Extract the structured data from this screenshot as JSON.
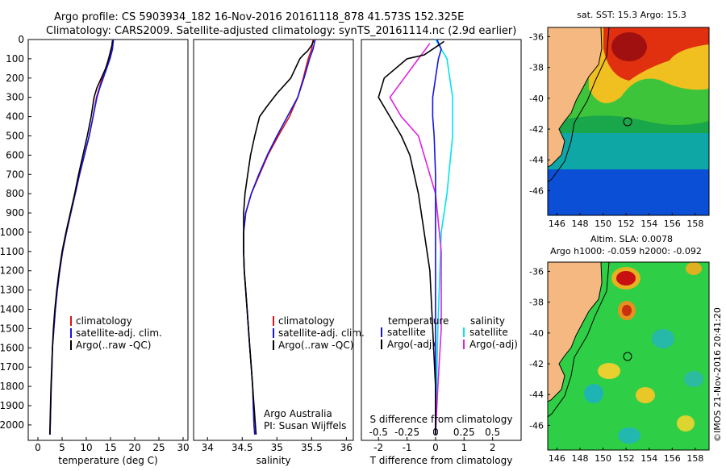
{
  "header": {
    "line1": "Argo profile: CS 5903934_182 16-Nov-2016 20161118_878 41.573S 152.325E",
    "line2": "Climatology: CARS2009. Satellite-adjusted climatology: synTS_20161114.nc (2.9d earlier)"
  },
  "depth_ticks": [
    "0",
    "100",
    "200",
    "300",
    "400",
    "500",
    "600",
    "700",
    "800",
    "900",
    "1000",
    "1100",
    "1200",
    "1300",
    "1400",
    "1500",
    "1600",
    "1700",
    "1800",
    "1900",
    "2000"
  ],
  "colors": {
    "climatology": "#e01010",
    "satellite": "#1515e0",
    "argo": "#000000",
    "sal_sat": "#00e5ee",
    "sal_argo": "#e020e0"
  },
  "chart_data": [
    {
      "type": "line",
      "name": "temperature",
      "xlabel": "temperature (deg C)",
      "ylabel": "",
      "xlim": [
        -2,
        31
      ],
      "ylim": [
        2080,
        0
      ],
      "xticks": [
        "0",
        "5",
        "10",
        "15",
        "20",
        "25",
        "30"
      ],
      "legend": [
        "climatology",
        "satellite-adj. clim.",
        "Argo(..raw -QC)"
      ],
      "legend_placement": "lower-middle",
      "series": [
        {
          "name": "climatology",
          "color_key": "climatology",
          "points": [
            [
              15.5,
              0
            ],
            [
              15.3,
              50
            ],
            [
              14.7,
              100
            ],
            [
              14.0,
              150
            ],
            [
              13.3,
              200
            ],
            [
              12.7,
              250
            ],
            [
              12.1,
              300
            ],
            [
              11.4,
              400
            ],
            [
              10.6,
              500
            ],
            [
              9.6,
              600
            ],
            [
              8.6,
              700
            ],
            [
              7.7,
              800
            ],
            [
              6.8,
              900
            ],
            [
              5.9,
              1000
            ],
            [
              5.1,
              1100
            ],
            [
              4.5,
              1200
            ],
            [
              4.0,
              1300
            ],
            [
              3.6,
              1400
            ],
            [
              3.3,
              1500
            ],
            [
              3.0,
              1600
            ],
            [
              2.9,
              1700
            ],
            [
              2.75,
              1800
            ],
            [
              2.65,
              1900
            ],
            [
              2.55,
              2000
            ],
            [
              2.5,
              2050
            ]
          ]
        },
        {
          "name": "satellite-adj. clim.",
          "color_key": "satellite",
          "points": [
            [
              15.6,
              0
            ],
            [
              15.4,
              50
            ],
            [
              14.9,
              100
            ],
            [
              14.2,
              150
            ],
            [
              13.5,
              200
            ],
            [
              12.8,
              250
            ],
            [
              12.2,
              300
            ],
            [
              11.4,
              400
            ],
            [
              10.6,
              500
            ],
            [
              9.6,
              600
            ],
            [
              8.6,
              700
            ],
            [
              7.7,
              800
            ],
            [
              6.8,
              900
            ],
            [
              5.9,
              1000
            ],
            [
              5.1,
              1100
            ],
            [
              4.5,
              1200
            ],
            [
              4.0,
              1300
            ],
            [
              3.6,
              1400
            ],
            [
              3.3,
              1500
            ],
            [
              3.0,
              1600
            ],
            [
              2.9,
              1700
            ],
            [
              2.75,
              1800
            ],
            [
              2.65,
              1900
            ],
            [
              2.55,
              2000
            ],
            [
              2.5,
              2050
            ]
          ]
        },
        {
          "name": "Argo(..raw -QC)",
          "color_key": "argo",
          "points": [
            [
              15.4,
              5
            ],
            [
              15.3,
              30
            ],
            [
              15.0,
              60
            ],
            [
              14.6,
              100
            ],
            [
              14.0,
              150
            ],
            [
              13.1,
              200
            ],
            [
              12.2,
              250
            ],
            [
              11.6,
              300
            ],
            [
              11.0,
              400
            ],
            [
              10.2,
              500
            ],
            [
              9.3,
              600
            ],
            [
              8.4,
              700
            ],
            [
              7.6,
              800
            ],
            [
              6.7,
              900
            ],
            [
              5.8,
              1000
            ],
            [
              5.0,
              1100
            ],
            [
              4.4,
              1200
            ],
            [
              3.9,
              1300
            ],
            [
              3.5,
              1400
            ],
            [
              3.2,
              1500
            ],
            [
              3.0,
              1600
            ],
            [
              2.85,
              1700
            ],
            [
              2.7,
              1800
            ],
            [
              2.6,
              1900
            ],
            [
              2.5,
              2000
            ],
            [
              2.45,
              2050
            ]
          ]
        }
      ]
    },
    {
      "type": "line",
      "name": "salinity",
      "xlabel": "salinity",
      "ylabel": "",
      "xlim": [
        33.8,
        36.1
      ],
      "ylim": [
        2080,
        0
      ],
      "xticks": [
        "34",
        "34.5",
        "35",
        "35.5",
        "36"
      ],
      "legend": [
        "climatology",
        "satellite-adj. clim.",
        "Argo(..raw -QC)"
      ],
      "annotation": [
        "Argo Australia",
        "PI: Susan Wijffels"
      ],
      "series": [
        {
          "name": "climatology",
          "color_key": "climatology",
          "points": [
            [
              35.52,
              0
            ],
            [
              35.5,
              50
            ],
            [
              35.45,
              100
            ],
            [
              35.38,
              200
            ],
            [
              35.3,
              300
            ],
            [
              35.18,
              400
            ],
            [
              35.02,
              500
            ],
            [
              34.87,
              600
            ],
            [
              34.75,
              700
            ],
            [
              34.63,
              800
            ],
            [
              34.55,
              900
            ],
            [
              34.52,
              1000
            ],
            [
              34.52,
              1100
            ],
            [
              34.53,
              1200
            ],
            [
              34.55,
              1300
            ],
            [
              34.57,
              1400
            ],
            [
              34.59,
              1500
            ],
            [
              34.61,
              1600
            ],
            [
              34.63,
              1700
            ],
            [
              34.65,
              1800
            ],
            [
              34.66,
              1900
            ],
            [
              34.67,
              2000
            ],
            [
              34.68,
              2050
            ]
          ]
        },
        {
          "name": "satellite-adj. clim.",
          "color_key": "satellite",
          "points": [
            [
              35.55,
              0
            ],
            [
              35.52,
              50
            ],
            [
              35.47,
              100
            ],
            [
              35.39,
              200
            ],
            [
              35.3,
              300
            ],
            [
              35.15,
              400
            ],
            [
              35.0,
              500
            ],
            [
              34.86,
              600
            ],
            [
              34.74,
              700
            ],
            [
              34.63,
              800
            ],
            [
              34.55,
              900
            ],
            [
              34.52,
              1000
            ],
            [
              34.52,
              1100
            ],
            [
              34.53,
              1200
            ],
            [
              34.55,
              1300
            ],
            [
              34.57,
              1400
            ],
            [
              34.59,
              1500
            ],
            [
              34.61,
              1600
            ],
            [
              34.63,
              1700
            ],
            [
              34.65,
              1800
            ],
            [
              34.66,
              1900
            ],
            [
              34.67,
              2000
            ],
            [
              34.68,
              2050
            ]
          ]
        },
        {
          "name": "Argo(..raw -QC)",
          "color_key": "argo",
          "points": [
            [
              35.53,
              5
            ],
            [
              35.5,
              30
            ],
            [
              35.44,
              60
            ],
            [
              35.38,
              80
            ],
            [
              35.33,
              100
            ],
            [
              35.2,
              200
            ],
            [
              35.0,
              280
            ],
            [
              34.85,
              350
            ],
            [
              34.75,
              400
            ],
            [
              34.68,
              500
            ],
            [
              34.62,
              600
            ],
            [
              34.58,
              700
            ],
            [
              34.54,
              800
            ],
            [
              34.52,
              900
            ],
            [
              34.52,
              1000
            ],
            [
              34.52,
              1100
            ],
            [
              34.53,
              1200
            ],
            [
              34.55,
              1300
            ],
            [
              34.57,
              1400
            ],
            [
              34.59,
              1500
            ],
            [
              34.61,
              1600
            ],
            [
              34.63,
              1700
            ],
            [
              34.65,
              1800
            ],
            [
              34.67,
              1900
            ],
            [
              34.69,
              2000
            ],
            [
              34.7,
              2050
            ]
          ]
        }
      ]
    },
    {
      "type": "line",
      "name": "differences",
      "xlabel": "T difference from climatology",
      "xlabel_top": "S difference from climatology",
      "xlim": [
        -2.6,
        3.0
      ],
      "ylim": [
        2080,
        0
      ],
      "xticks": [
        "-2",
        "-1",
        "0",
        "1",
        "2"
      ],
      "xticks_top": [
        "-0.5",
        "-0.25",
        "0",
        "0.25",
        "0.5"
      ],
      "legend_temperature": [
        "temperature",
        "satellite",
        "Argo(-adj)"
      ],
      "legend_salinity": [
        "salinity",
        "satellite",
        "Argo(-adj)"
      ],
      "series": [
        {
          "name": "satellite",
          "group": "temperature",
          "color_key": "satellite",
          "points": [
            [
              0.05,
              0
            ],
            [
              0.2,
              50
            ],
            [
              0.1,
              100
            ],
            [
              0.0,
              200
            ],
            [
              -0.1,
              300
            ],
            [
              -0.1,
              400
            ],
            [
              -0.05,
              500
            ],
            [
              0.0,
              700
            ],
            [
              0.0,
              1000
            ],
            [
              0.0,
              2050
            ]
          ]
        },
        {
          "name": "Argo(-adj)",
          "group": "temperature",
          "color_key": "argo",
          "points": [
            [
              0.3,
              10
            ],
            [
              0.1,
              30
            ],
            [
              -0.4,
              80
            ],
            [
              -1.0,
              100
            ],
            [
              -1.8,
              200
            ],
            [
              -2.0,
              300
            ],
            [
              -1.6,
              400
            ],
            [
              -1.2,
              500
            ],
            [
              -0.9,
              600
            ],
            [
              -0.6,
              800
            ],
            [
              -0.4,
              1000
            ],
            [
              -0.2,
              1200
            ],
            [
              -0.1,
              1500
            ],
            [
              0.0,
              1800
            ],
            [
              0.0,
              2050
            ]
          ]
        },
        {
          "name": "satellite",
          "group": "salinity",
          "color_key": "sal_sat",
          "points": [
            [
              0.0,
              0
            ],
            [
              0.05,
              50
            ],
            [
              0.1,
              100
            ],
            [
              0.15,
              300
            ],
            [
              0.15,
              500
            ],
            [
              0.1,
              800
            ],
            [
              0.05,
              1000
            ],
            [
              0.02,
              1500
            ],
            [
              0.0,
              2050
            ]
          ]
        },
        {
          "name": "Argo(-adj)",
          "group": "salinity",
          "color_key": "sal_argo",
          "points": [
            [
              -0.05,
              20
            ],
            [
              -0.15,
              100
            ],
            [
              -0.4,
              300
            ],
            [
              -0.3,
              400
            ],
            [
              -0.15,
              500
            ],
            [
              0.0,
              800
            ],
            [
              0.05,
              1100
            ],
            [
              0.05,
              1500
            ],
            [
              0.02,
              1800
            ],
            [
              0.0,
              2050
            ]
          ]
        }
      ]
    }
  ],
  "maps": [
    {
      "title": "sat. SST: 15.3 Argo: 15.3",
      "title2": "",
      "yticks": [
        "-36",
        "-38",
        "-40",
        "-42",
        "-44",
        "-46"
      ],
      "xticks": [
        "146",
        "148",
        "150",
        "152",
        "154",
        "156",
        "158"
      ],
      "float_marker": "Argo float position"
    },
    {
      "title": "Altim. SLA: 0.0078",
      "title2": "Argo h1000: -0.059 h2000: -0.092",
      "yticks": [
        "-36",
        "-38",
        "-40",
        "-42",
        "-44",
        "-46"
      ],
      "xticks": [
        "146",
        "148",
        "150",
        "152",
        "154",
        "156",
        "158"
      ],
      "float_marker": "Argo float position"
    }
  ],
  "credit": "©IMOS 21-Nov-2016 20:41:20"
}
